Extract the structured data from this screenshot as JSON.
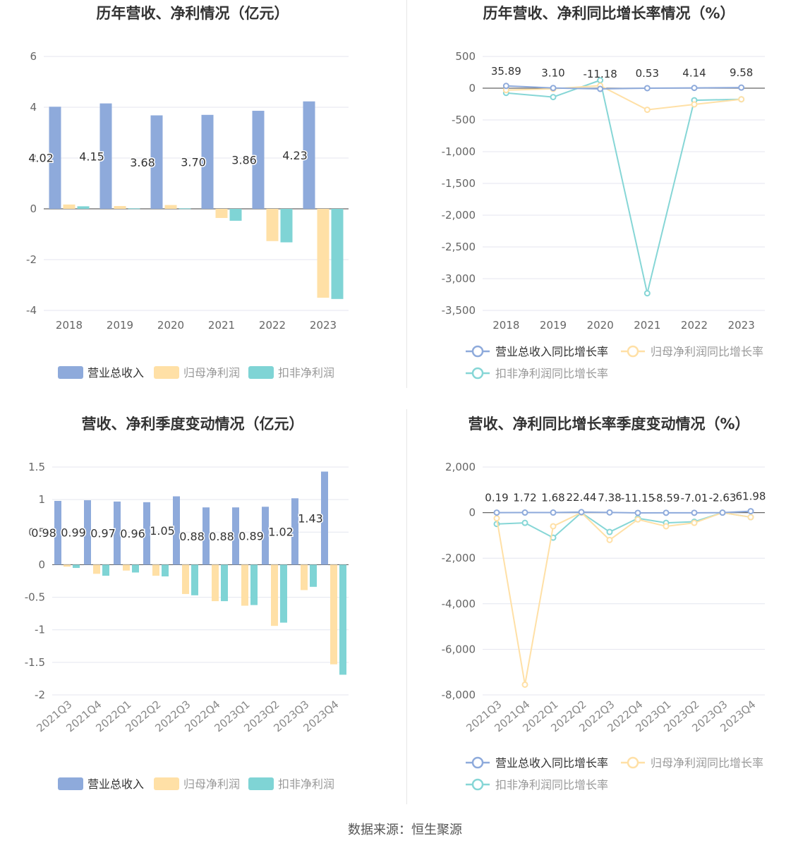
{
  "footer": {
    "source": "数据来源：恒生聚源"
  },
  "colors": {
    "revenue": "#8eaadb",
    "net": "#ffe0a6",
    "deducted": "#7fd4d5"
  },
  "chart_data": [
    {
      "type": "bar",
      "title": "历年营收、净利情况（亿元）",
      "categories": [
        "2018",
        "2019",
        "2020",
        "2021",
        "2022",
        "2023"
      ],
      "ylim": [
        -4,
        6
      ],
      "yticks": [
        -4,
        -2,
        0,
        2,
        4,
        6
      ],
      "grid": true,
      "legend_position": "bottom",
      "series": [
        {
          "name": "营业总收入",
          "values": [
            4.02,
            4.15,
            3.68,
            3.7,
            3.86,
            4.23
          ],
          "labels": [
            "4.02",
            "4.15",
            "3.68",
            "3.70",
            "3.86",
            "4.23"
          ]
        },
        {
          "name": "归母净利润",
          "values": [
            0.17,
            0.11,
            0.15,
            -0.36,
            -1.27,
            -3.5
          ]
        },
        {
          "name": "扣非净利润",
          "values": [
            0.1,
            0.02,
            0.02,
            -0.47,
            -1.32,
            -3.55
          ]
        }
      ]
    },
    {
      "type": "line",
      "title": "历年营收、净利同比增长率情况（%）",
      "categories": [
        "2018",
        "2019",
        "2020",
        "2021",
        "2022",
        "2023"
      ],
      "ylim": [
        -3500,
        500
      ],
      "yticks": [
        500,
        0,
        -500,
        -1000,
        -1500,
        -2000,
        -2500,
        -3000,
        -3500
      ],
      "ytick_labels": [
        "500",
        "0",
        "-500",
        "-1,000",
        "-1,500",
        "-2,000",
        "-2,500",
        "-3,000",
        "-3,500"
      ],
      "grid": true,
      "legend_position": "bottom",
      "series": [
        {
          "name": "营业总收入同比增长率",
          "values": [
            35.89,
            3.1,
            -11.18,
            0.53,
            4.14,
            9.58
          ],
          "labels": [
            "35.89",
            "3.10",
            "-11.18",
            "0.53",
            "4.14",
            "9.58"
          ]
        },
        {
          "name": "归母净利润同比增长率",
          "values": [
            -30,
            -10,
            40,
            -340,
            -255,
            -175
          ]
        },
        {
          "name": "扣非净利润同比增长率",
          "values": [
            -75,
            -140,
            125,
            -3230,
            -190,
            -175
          ]
        }
      ]
    },
    {
      "type": "bar",
      "title": "营收、净利季度变动情况（亿元）",
      "categories": [
        "2021Q3",
        "2021Q4",
        "2022Q1",
        "2022Q2",
        "2022Q3",
        "2022Q4",
        "2023Q1",
        "2023Q2",
        "2023Q3",
        "2023Q4"
      ],
      "ylim": [
        -2,
        1.5
      ],
      "yticks": [
        -2,
        -1.5,
        -1,
        -0.5,
        0,
        0.5,
        1,
        1.5
      ],
      "grid": true,
      "legend_position": "bottom",
      "series": [
        {
          "name": "营业总收入",
          "values": [
            0.98,
            0.99,
            0.97,
            0.96,
            1.05,
            0.88,
            0.88,
            0.89,
            1.02,
            1.43
          ],
          "labels": [
            "0.98",
            "0.99",
            "0.97",
            "0.96",
            "1.05",
            "0.88",
            "0.88",
            "0.89",
            "1.02",
            "1.43"
          ]
        },
        {
          "name": "归母净利润",
          "values": [
            -0.03,
            -0.14,
            -0.09,
            -0.17,
            -0.45,
            -0.56,
            -0.63,
            -0.94,
            -0.39,
            -1.53
          ]
        },
        {
          "name": "扣非净利润",
          "values": [
            -0.05,
            -0.17,
            -0.12,
            -0.18,
            -0.47,
            -0.56,
            -0.62,
            -0.89,
            -0.34,
            -1.69
          ]
        }
      ]
    },
    {
      "type": "line",
      "title": "营收、净利同比增长率季度变动情况（%）",
      "categories": [
        "2021Q3",
        "2021Q4",
        "2022Q1",
        "2022Q2",
        "2022Q3",
        "2022Q4",
        "2023Q1",
        "2023Q2",
        "2023Q3",
        "2023Q4"
      ],
      "ylim": [
        -8000,
        2000
      ],
      "yticks": [
        2000,
        0,
        -2000,
        -4000,
        -6000,
        -8000
      ],
      "ytick_labels": [
        "2,000",
        "0",
        "-2,000",
        "-4,000",
        "-6,000",
        "-8,000"
      ],
      "grid": true,
      "legend_position": "bottom",
      "series": [
        {
          "name": "营业总收入同比增长率",
          "values": [
            0.19,
            1.72,
            1.68,
            22.44,
            7.38,
            -11.15,
            -8.59,
            -7.01,
            -2.63,
            61.98
          ],
          "labels": [
            "0.19",
            "1.72",
            "1.68",
            "22.44",
            "7.38",
            "-11.15",
            "-8.59",
            "-7.01",
            "-2.63",
            "61.98"
          ]
        },
        {
          "name": "归母净利润同比增长率",
          "values": [
            -250,
            -7550,
            -600,
            0,
            -1200,
            -300,
            -600,
            -450,
            0,
            -200
          ]
        },
        {
          "name": "扣非净利润同比增长率",
          "values": [
            -500,
            -450,
            -1100,
            0,
            -850,
            -250,
            -450,
            -400,
            0,
            -200
          ]
        }
      ]
    }
  ]
}
